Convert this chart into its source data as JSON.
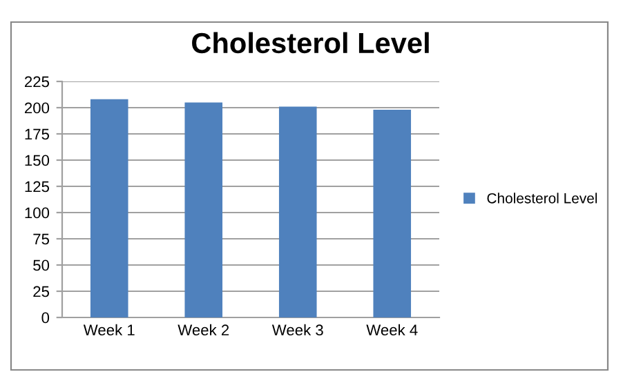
{
  "chart_data": {
    "type": "bar",
    "title": "Cholesterol Level",
    "categories": [
      "Week 1",
      "Week 2",
      "Week 3",
      "Week 4"
    ],
    "series": [
      {
        "name": "Cholesterol Level",
        "color": "#4f81bd",
        "values": [
          208,
          205,
          201,
          198
        ]
      }
    ],
    "ylim": [
      0,
      225
    ],
    "yticks": [
      0,
      25,
      50,
      75,
      100,
      125,
      150,
      175,
      200,
      225
    ],
    "grid": "y",
    "legend": "right"
  }
}
